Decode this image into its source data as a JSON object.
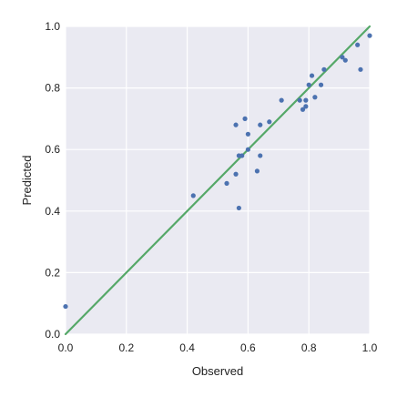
{
  "chart_data": {
    "type": "scatter",
    "xlabel": "Observed",
    "ylabel": "Predicted",
    "xlim": [
      0.0,
      1.0
    ],
    "ylim": [
      0.0,
      1.0
    ],
    "xticks": [
      "0.0",
      "0.2",
      "0.4",
      "0.6",
      "0.8",
      "1.0"
    ],
    "yticks": [
      "0.0",
      "0.2",
      "0.4",
      "0.6",
      "0.8",
      "1.0"
    ],
    "grid": true,
    "background_color": "#eaeaf2",
    "grid_color": "#ffffff",
    "point_color": "#4c72b0",
    "line_color": "#55a868",
    "reference_line": {
      "x": [
        0.0,
        1.0
      ],
      "y": [
        0.0,
        1.0
      ]
    },
    "points": [
      {
        "x": 0.0,
        "y": 0.09
      },
      {
        "x": 0.42,
        "y": 0.45
      },
      {
        "x": 0.53,
        "y": 0.49
      },
      {
        "x": 0.56,
        "y": 0.52
      },
      {
        "x": 0.57,
        "y": 0.41
      },
      {
        "x": 0.56,
        "y": 0.68
      },
      {
        "x": 0.57,
        "y": 0.58
      },
      {
        "x": 0.58,
        "y": 0.58
      },
      {
        "x": 0.59,
        "y": 0.7
      },
      {
        "x": 0.6,
        "y": 0.65
      },
      {
        "x": 0.6,
        "y": 0.6
      },
      {
        "x": 0.63,
        "y": 0.53
      },
      {
        "x": 0.64,
        "y": 0.58
      },
      {
        "x": 0.64,
        "y": 0.68
      },
      {
        "x": 0.67,
        "y": 0.69
      },
      {
        "x": 0.71,
        "y": 0.76
      },
      {
        "x": 0.77,
        "y": 0.76
      },
      {
        "x": 0.78,
        "y": 0.73
      },
      {
        "x": 0.79,
        "y": 0.76
      },
      {
        "x": 0.79,
        "y": 0.74
      },
      {
        "x": 0.8,
        "y": 0.81
      },
      {
        "x": 0.81,
        "y": 0.84
      },
      {
        "x": 0.82,
        "y": 0.77
      },
      {
        "x": 0.84,
        "y": 0.81
      },
      {
        "x": 0.85,
        "y": 0.86
      },
      {
        "x": 0.91,
        "y": 0.9
      },
      {
        "x": 0.92,
        "y": 0.89
      },
      {
        "x": 0.96,
        "y": 0.94
      },
      {
        "x": 0.97,
        "y": 0.86
      },
      {
        "x": 1.0,
        "y": 0.97
      }
    ]
  }
}
